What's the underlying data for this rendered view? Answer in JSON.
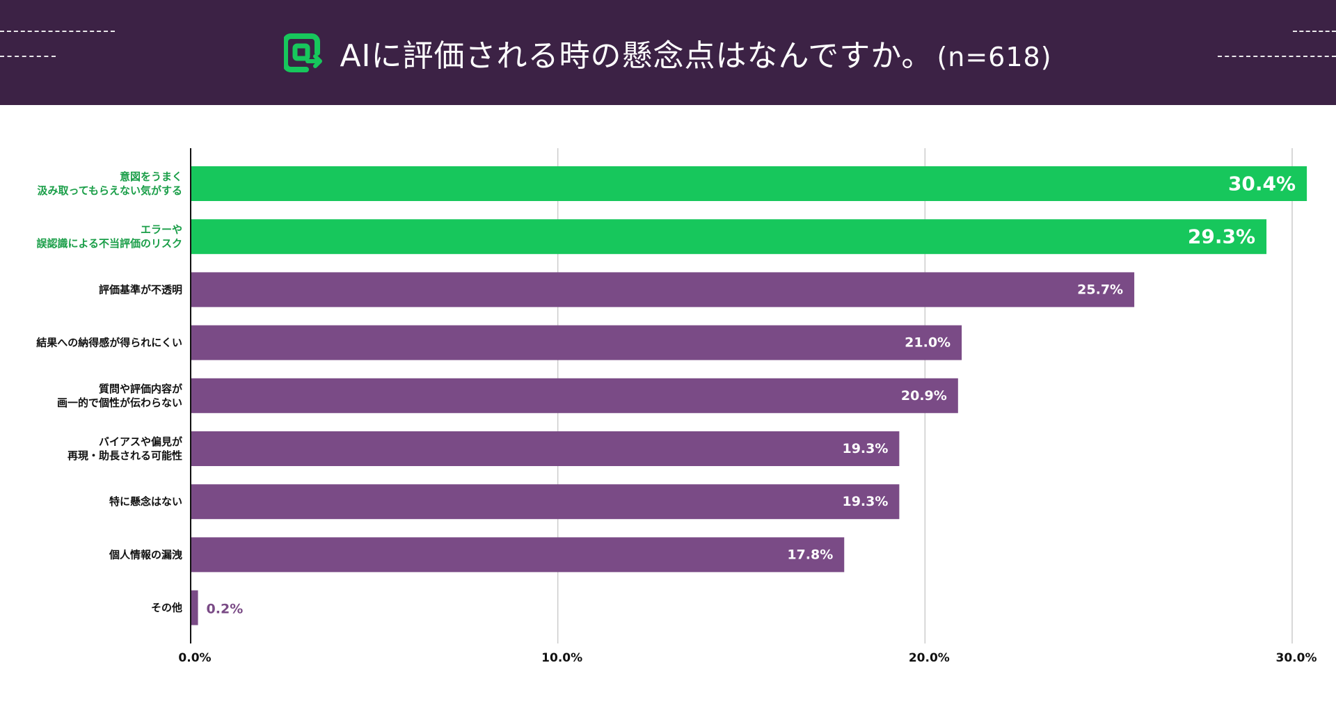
{
  "header": {
    "title": "AIに評価される時の懸念点はなんですか。",
    "sample": "(n=618)"
  },
  "icons": {
    "logo": "rounded-square-arrow-logo-icon"
  },
  "colors": {
    "header_bg": "#3c2245",
    "highlight": "#17c75c",
    "bar": "#7a4b86",
    "highlight_text": "#1a9e48",
    "bar_text_outside": "#7a4b86"
  },
  "chart_data": {
    "type": "bar",
    "orientation": "horizontal",
    "categories": [
      "意図をうまく\n汲み取ってもらえない気がする",
      "エラーや\n誤認識による不当評価のリスク",
      "評価基準が不透明",
      "結果への納得感が得られにくい",
      "質問や評価内容が\n画一的で個性が伝わらない",
      "バイアスや偏見が\n再現・助長される可能性",
      "特に懸念はない",
      "個人情報の漏洩",
      "その他"
    ],
    "values": [
      30.4,
      29.3,
      25.7,
      21.0,
      20.9,
      19.3,
      19.3,
      17.8,
      0.2
    ],
    "value_labels": [
      "30.4%",
      "29.3%",
      "25.7%",
      "21.0%",
      "20.9%",
      "19.3%",
      "19.3%",
      "17.8%",
      "0.2%"
    ],
    "highlighted": [
      true,
      true,
      false,
      false,
      false,
      false,
      false,
      false,
      false
    ],
    "xlim": [
      0,
      30
    ],
    "xticks": [
      0,
      10,
      20,
      30
    ],
    "xtick_labels": [
      "0.0%",
      "10.0%",
      "20.0%",
      "30.0%"
    ],
    "grid": true,
    "title": "AIに評価される時の懸念点はなんですか。(n=618)"
  }
}
